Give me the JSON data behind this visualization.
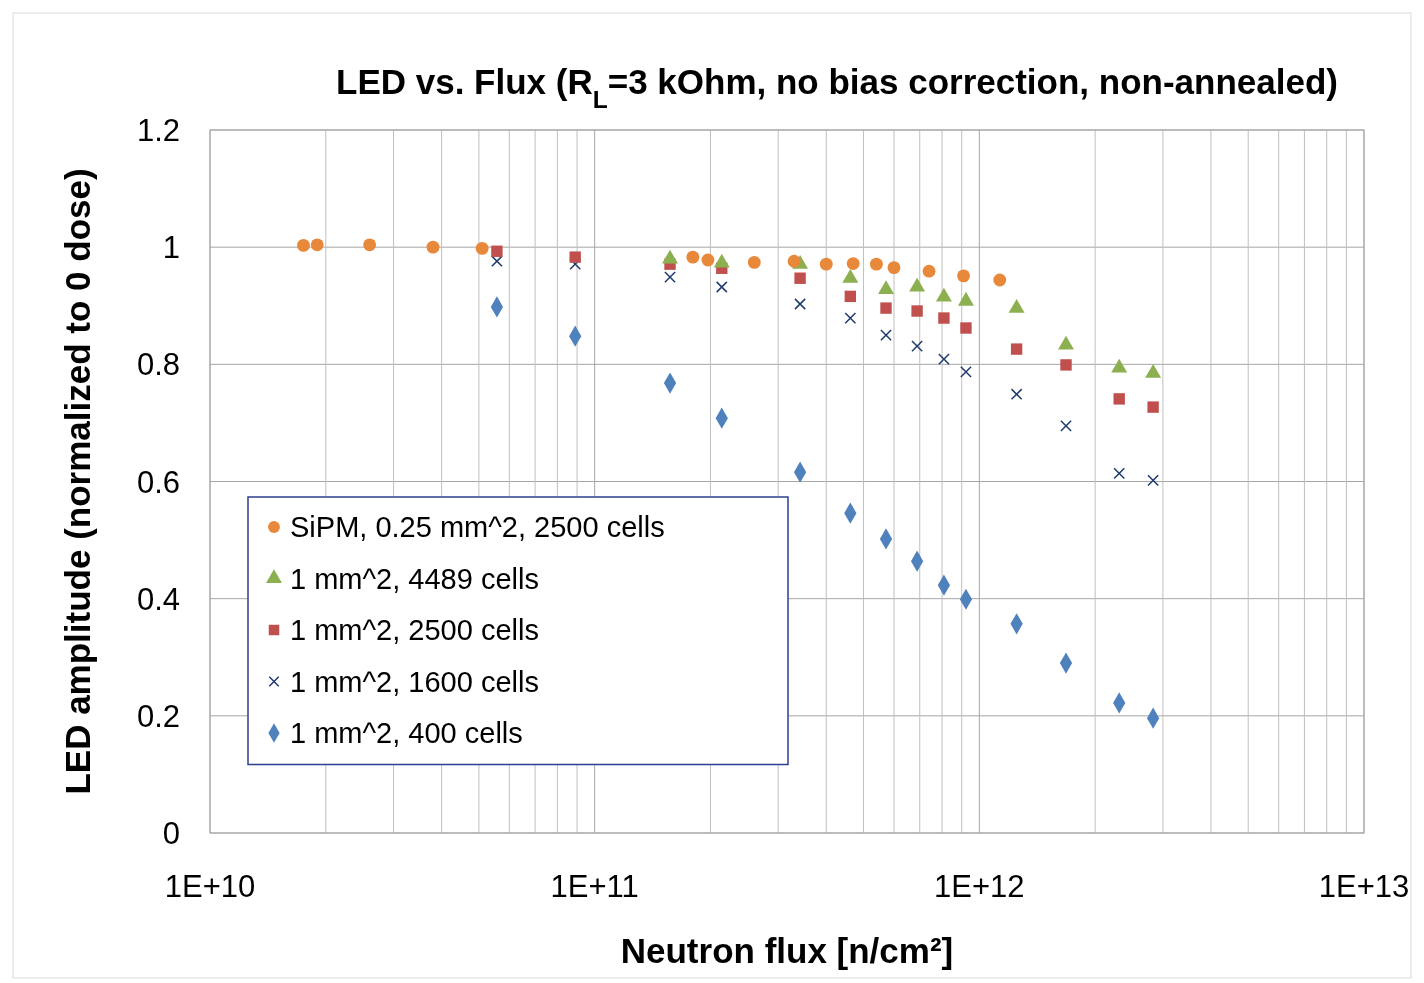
{
  "chart_data": {
    "type": "scatter",
    "title": "LED vs. Flux (R$_{L}$=3 kOhm, no bias correction, non-annealed)",
    "xlabel": "Neutron flux [n/cm²]",
    "ylabel": "LED amplitude (normalized to 0 dose)",
    "log": "x",
    "grid": true,
    "legend": "bottom left",
    "xlim": [
      10000000000.0,
      10000000000000.0
    ],
    "xticks": [
      {
        "value": 10000000000.0,
        "label": "1E+10"
      },
      {
        "value": 100000000000.0,
        "label": "1E+11"
      },
      {
        "value": 1000000000000.0,
        "label": "1E+12"
      },
      {
        "value": 10000000000000.0,
        "label": "1E+13"
      }
    ],
    "ylim": [
      0,
      1.2
    ],
    "yticks": [
      0,
      0.2,
      0.4,
      0.6,
      0.8,
      1,
      1.2
    ],
    "series": [
      {
        "name": "SiPM, 0.25 mm^2, 2500 cells",
        "color": "#e8883a",
        "marker": "circle",
        "x": [
          17500000000.0,
          19000000000.0,
          26000000000.0,
          38000000000.0,
          51000000000.0,
          180000000000.0,
          197000000000.0,
          260000000000.0,
          330000000000.0,
          400000000000.0,
          470000000000.0,
          540000000000.0,
          600000000000.0,
          740000000000.0,
          910000000000.0,
          1130000000000.0
        ],
        "values": [
          1.003,
          1.004,
          1.004,
          1.0,
          0.998,
          0.983,
          0.978,
          0.974,
          0.976,
          0.971,
          0.972,
          0.971,
          0.965,
          0.959,
          0.951,
          0.944
        ]
      },
      {
        "name": "1 mm^2, 4489 cells",
        "color": "#8cb050",
        "marker": "triangle",
        "x": [
          157000000000.0,
          214000000000.0,
          342000000000.0,
          462000000000.0,
          572000000000.0,
          689000000000.0,
          809000000000.0,
          923000000000.0,
          1250000000000.0,
          1680000000000.0,
          2310000000000.0,
          2830000000000.0
        ],
        "values": [
          0.98,
          0.973,
          0.971,
          0.947,
          0.928,
          0.932,
          0.915,
          0.908,
          0.896,
          0.833,
          0.794,
          0.785
        ]
      },
      {
        "name": "1 mm^2, 2500 cells",
        "color": "#c0504d",
        "marker": "square",
        "x": [
          55700000000.0,
          89000000000.0,
          157000000000.0,
          214000000000.0,
          342000000000.0,
          462000000000.0,
          572000000000.0,
          689000000000.0,
          809000000000.0,
          923000000000.0,
          1250000000000.0,
          1680000000000.0,
          2310000000000.0,
          2830000000000.0
        ],
        "values": [
          0.993,
          0.983,
          0.971,
          0.964,
          0.947,
          0.916,
          0.896,
          0.891,
          0.879,
          0.862,
          0.826,
          0.799,
          0.741,
          0.727
        ]
      },
      {
        "name": "1 mm^2, 1600 cells",
        "color": "#1f3a6e",
        "marker": "cross",
        "x": [
          55700000000.0,
          89000000000.0,
          157000000000.0,
          214000000000.0,
          342000000000.0,
          462000000000.0,
          572000000000.0,
          689000000000.0,
          809000000000.0,
          923000000000.0,
          1250000000000.0,
          1680000000000.0,
          2310000000000.0,
          2830000000000.0
        ],
        "values": [
          0.976,
          0.971,
          0.949,
          0.932,
          0.903,
          0.879,
          0.85,
          0.831,
          0.809,
          0.787,
          0.749,
          0.695,
          0.614,
          0.602
        ]
      },
      {
        "name": "1 mm^2, 400 cells",
        "color": "#4f81bd",
        "marker": "diamond",
        "x": [
          55700000000.0,
          89000000000.0,
          157000000000.0,
          214000000000.0,
          342000000000.0,
          462000000000.0,
          572000000000.0,
          689000000000.0,
          809000000000.0,
          923000000000.0,
          1250000000000.0,
          1680000000000.0,
          2310000000000.0,
          2830000000000.0
        ],
        "values": [
          0.898,
          0.848,
          0.768,
          0.708,
          0.616,
          0.546,
          0.502,
          0.464,
          0.423,
          0.399,
          0.357,
          0.29,
          0.222,
          0.196
        ]
      }
    ]
  }
}
